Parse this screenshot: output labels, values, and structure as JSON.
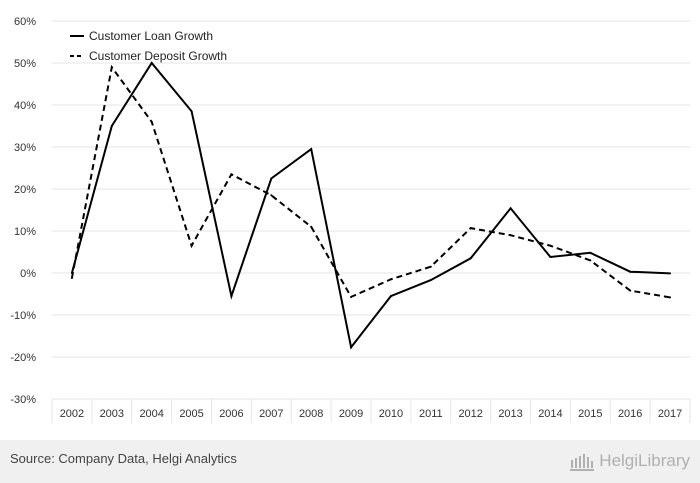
{
  "chart_data": {
    "type": "line",
    "title": "",
    "xlabel": "",
    "ylabel": "",
    "categories": [
      "2002",
      "2003",
      "2004",
      "2005",
      "2006",
      "2007",
      "2008",
      "2009",
      "2010",
      "2011",
      "2012",
      "2013",
      "2014",
      "2015",
      "2016",
      "2017"
    ],
    "series": [
      {
        "name": "Customer Loan Growth",
        "style": "solid",
        "color": "#000000",
        "values": [
          0,
          35,
          50,
          38.5,
          -5.5,
          22.5,
          29.5,
          -17.7,
          -5.5,
          -1.7,
          3.5,
          15.4,
          3.8,
          4.8,
          0.3,
          -0.1
        ]
      },
      {
        "name": "Customer Deposit Growth",
        "style": "dashed",
        "color": "#000000",
        "values": [
          -1.2,
          49,
          36,
          6.5,
          23.5,
          18.5,
          11,
          -5.7,
          -1.5,
          1.5,
          10.7,
          9,
          6.5,
          3,
          -4.2,
          -5.8
        ]
      }
    ],
    "ylim": [
      -30,
      60
    ],
    "yticks": [
      -30,
      -20,
      -10,
      0,
      10,
      20,
      30,
      40,
      50,
      60
    ],
    "ytick_labels": [
      "-30%",
      "-20%",
      "-10%",
      "0%",
      "10%",
      "20%",
      "30%",
      "40%",
      "50%",
      "60%"
    ],
    "grid": true,
    "legend_position": "top-left"
  },
  "footer": {
    "source": "Source: Company Data, Helgi Analytics",
    "brand": "HelgiLibrary"
  },
  "colors": {
    "grid": "#e6e6e6",
    "footer_bg": "#f0f0f0",
    "brand": "#b0b0b0"
  }
}
